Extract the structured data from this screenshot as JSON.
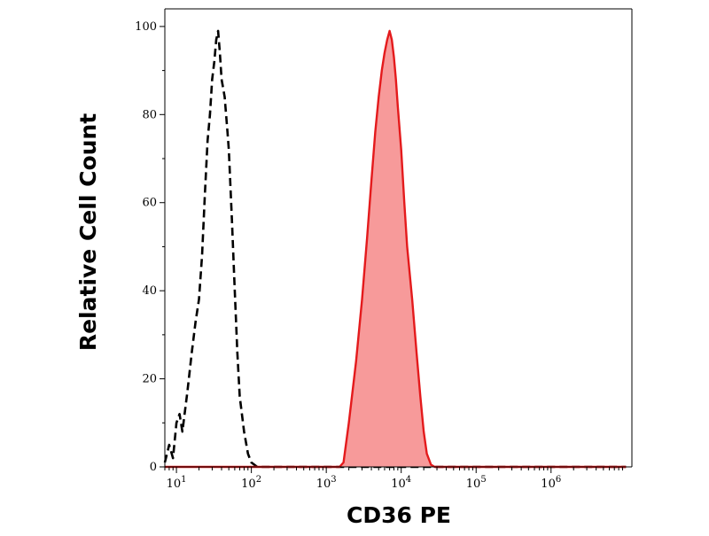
{
  "chart_data": {
    "type": "area",
    "title": "",
    "xlabel": "CD36 PE",
    "ylabel": "Relative Cell Count",
    "x_scale": "log",
    "xlim": [
      7,
      12000000
    ],
    "ylim": [
      0,
      104
    ],
    "x_ticks": [
      {
        "value": 10,
        "base": "10",
        "exp": "1"
      },
      {
        "value": 100,
        "base": "10",
        "exp": "2"
      },
      {
        "value": 1000,
        "base": "10",
        "exp": "3"
      },
      {
        "value": 10000,
        "base": "10",
        "exp": "4"
      },
      {
        "value": 100000,
        "base": "10",
        "exp": "5"
      },
      {
        "value": 1000000,
        "base": "10",
        "exp": "6"
      }
    ],
    "y_ticks": [
      {
        "value": 0,
        "label": "0"
      },
      {
        "value": 20,
        "label": "20"
      },
      {
        "value": 40,
        "label": "40"
      },
      {
        "value": 60,
        "label": "60"
      },
      {
        "value": 80,
        "label": "80"
      },
      {
        "value": 100,
        "label": "100"
      }
    ],
    "grid": false,
    "legend": "none",
    "series": [
      {
        "style": "dashed",
        "color": "#000000",
        "fill": "none",
        "x": [
          7,
          8,
          9,
          10,
          11,
          12,
          14,
          16,
          18,
          20,
          22,
          24,
          26,
          28,
          30,
          32,
          34,
          36,
          38,
          40,
          42,
          44,
          46,
          48,
          50,
          55,
          60,
          65,
          70,
          80,
          90,
          100,
          120,
          150,
          200,
          1000,
          10000,
          100000,
          1000000,
          10000000
        ],
        "y": [
          1,
          5,
          2,
          10,
          12,
          8,
          17,
          26,
          33,
          38,
          48,
          62,
          74,
          80,
          88,
          92,
          97,
          99,
          94,
          88,
          86,
          84,
          80,
          76,
          72,
          56,
          40,
          26,
          16,
          8,
          3,
          1,
          0,
          0,
          0,
          0,
          0,
          0,
          0,
          0
        ]
      },
      {
        "style": "solid",
        "color": "#e41a1c",
        "fill": "#f79a9a",
        "x": [
          7,
          100,
          1000,
          1500,
          1700,
          2000,
          2500,
          3000,
          3500,
          4000,
          4500,
          5000,
          5500,
          6000,
          6500,
          7000,
          7500,
          8000,
          8500,
          9000,
          10000,
          11000,
          12000,
          14000,
          16000,
          18000,
          20000,
          22000,
          25000,
          28000,
          100000,
          1000000,
          10000000
        ],
        "y": [
          0,
          0,
          0,
          0,
          1,
          10,
          24,
          38,
          52,
          65,
          76,
          84,
          90,
          94,
          97,
          99,
          97,
          93,
          88,
          82,
          72,
          60,
          50,
          38,
          26,
          16,
          8,
          3,
          0.5,
          0,
          0,
          0,
          0
        ]
      }
    ]
  }
}
